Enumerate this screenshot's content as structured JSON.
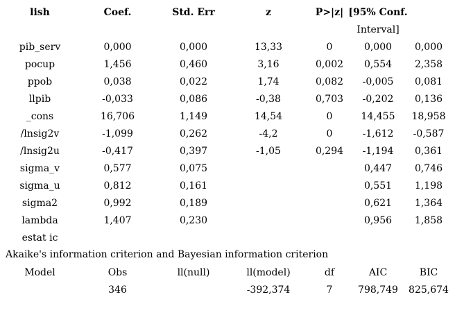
{
  "colors": {
    "text": "#000000",
    "background": "#ffffff"
  },
  "coef_table": {
    "headers": {
      "variable": "lish",
      "coef": "Coef.",
      "std_err": "Std. Err",
      "z": "z",
      "p": "P>|z|",
      "conf_line1": "[95% Conf.",
      "conf_line2": "Interval]"
    },
    "rows": [
      {
        "variable": "pib_serv",
        "coef": "0,000",
        "se": "0,000",
        "z": "13,33",
        "p": "0",
        "ci_low": "0,000",
        "ci_high": "0,000"
      },
      {
        "variable": "pocup",
        "coef": "1,456",
        "se": "0,460",
        "z": "3,16",
        "p": "0,002",
        "ci_low": "0,554",
        "ci_high": "2,358"
      },
      {
        "variable": "ppob",
        "coef": "0,038",
        "se": "0,022",
        "z": "1,74",
        "p": "0,082",
        "ci_low": "-0,005",
        "ci_high": "0,081"
      },
      {
        "variable": "llpib",
        "coef": "-0,033",
        "se": "0,086",
        "z": "-0,38",
        "p": "0,703",
        "ci_low": "-0,202",
        "ci_high": "0,136"
      },
      {
        "variable": "_cons",
        "coef": "16,706",
        "se": "1,149",
        "z": "14,54",
        "p": "0",
        "ci_low": "14,455",
        "ci_high": "18,958"
      },
      {
        "variable": "/lnsig2v",
        "coef": "-1,099",
        "se": "0,262",
        "z": "-4,2",
        "p": "0",
        "ci_low": "-1,612",
        "ci_high": "-0,587"
      },
      {
        "variable": "/lnsig2u",
        "coef": "-0,417",
        "se": "0,397",
        "z": "-1,05",
        "p": "0,294",
        "ci_low": "-1,194",
        "ci_high": "0,361"
      },
      {
        "variable": "sigma_v",
        "coef": "0,577",
        "se": "0,075",
        "z": "",
        "p": "",
        "ci_low": "0,447",
        "ci_high": "0,746"
      },
      {
        "variable": "sigma_u",
        "coef": "0,812",
        "se": "0,161",
        "z": "",
        "p": "",
        "ci_low": "0,551",
        "ci_high": "1,198"
      },
      {
        "variable": "sigma2",
        "coef": "0,992",
        "se": "0,189",
        "z": "",
        "p": "",
        "ci_low": "0,621",
        "ci_high": "1,364"
      },
      {
        "variable": "lambda",
        "coef": "1,407",
        "se": "0,230",
        "z": "",
        "p": "",
        "ci_low": "0,956",
        "ci_high": "1,858"
      }
    ]
  },
  "estat_ic_label": "estat ic",
  "ic_caption": "Akaike's information criterion and Bayesian information criterion",
  "ic_table": {
    "headers": {
      "model": "Model",
      "obs": "Obs",
      "ll_null": "ll(null)",
      "ll_model": "ll(model)",
      "df": "df",
      "aic": "AIC",
      "bic": "BIC"
    },
    "values": {
      "model": "",
      "obs": "346",
      "ll_null": "",
      "ll_model": "-392,374",
      "df": "7",
      "aic": "798,749",
      "bic": "825,674"
    }
  }
}
